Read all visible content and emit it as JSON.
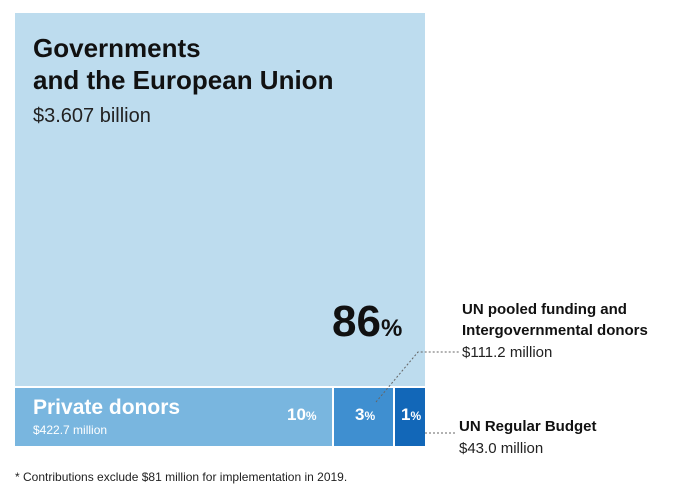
{
  "chart_data": {
    "type": "treemap",
    "units": "USD",
    "segments": [
      {
        "label_lines": [
          "Governments",
          "and the European Union"
        ],
        "amount": "$3.607 billion",
        "value_millions": 3607,
        "percent": 86,
        "percent_text": "86",
        "color": "#bddcee"
      },
      {
        "label_lines": [
          "Private donors"
        ],
        "amount": "$422.7 million",
        "value_millions": 422.7,
        "percent": 10,
        "percent_text": "10",
        "color": "#79b6df"
      },
      {
        "label_lines": [
          "UN pooled funding and",
          "Intergovernmental donors"
        ],
        "amount": "$111.2 million",
        "value_millions": 111.2,
        "percent": 3,
        "percent_text": "3",
        "color": "#3f8fd0"
      },
      {
        "label_lines": [
          "UN Regular Budget"
        ],
        "amount": "$43.0 million",
        "value_millions": 43.0,
        "percent": 1,
        "percent_text": "1",
        "color": "#1267b8"
      }
    ],
    "percent_sign": "%",
    "footnote": "* Contributions exclude $81 million for implementation in 2019."
  }
}
